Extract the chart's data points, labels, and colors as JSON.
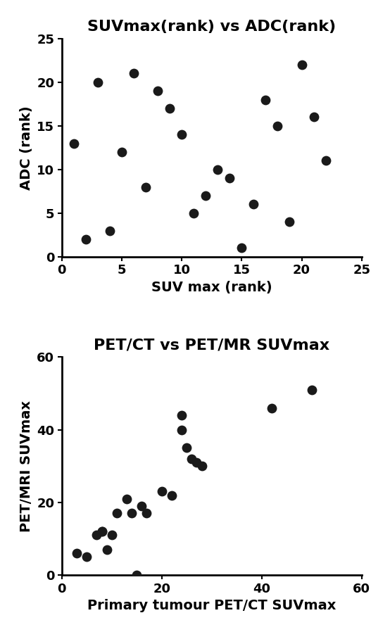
{
  "plot1": {
    "title": "SUVmax(rank) vs ADC(rank)",
    "xlabel": "SUV max (rank)",
    "ylabel": "ADC (rank)",
    "xlim": [
      0,
      25
    ],
    "ylim": [
      0,
      25
    ],
    "xticks": [
      0,
      5,
      10,
      15,
      20,
      25
    ],
    "yticks": [
      0,
      5,
      10,
      15,
      20,
      25
    ],
    "x": [
      1,
      2,
      3,
      4,
      5,
      6,
      7,
      8,
      9,
      10,
      11,
      12,
      13,
      14,
      15,
      16,
      17,
      18,
      19,
      20,
      21,
      22
    ],
    "y": [
      13,
      2,
      20,
      3,
      12,
      21,
      8,
      19,
      17,
      14,
      5,
      7,
      10,
      9,
      1,
      6,
      18,
      15,
      4,
      22,
      16,
      11
    ]
  },
  "plot2": {
    "title": "PET/CT vs PET/MR SUVmax",
    "xlabel": "Primary tumour PET/CT SUVmax",
    "ylabel": "PET/MRI SUVmax",
    "xlim": [
      0,
      60
    ],
    "ylim": [
      0,
      60
    ],
    "xticks": [
      0,
      20,
      40,
      60
    ],
    "yticks": [
      0,
      20,
      40,
      60
    ],
    "x": [
      3,
      5,
      7,
      8,
      8,
      9,
      10,
      11,
      13,
      14,
      15,
      16,
      17,
      20,
      22,
      24,
      24,
      25,
      26,
      27,
      28,
      42,
      50
    ],
    "y": [
      6,
      5,
      11,
      12,
      12,
      7,
      11,
      17,
      21,
      17,
      0,
      19,
      17,
      23,
      22,
      40,
      44,
      35,
      32,
      31,
      30,
      46,
      51
    ]
  },
  "marker_size": 80,
  "marker_color": "#1a1a1a",
  "title_fontsize": 16,
  "label_fontsize": 14,
  "tick_fontsize": 13,
  "bg_color": "#ffffff",
  "spine_color": "#000000",
  "spine_linewidth": 2.0
}
